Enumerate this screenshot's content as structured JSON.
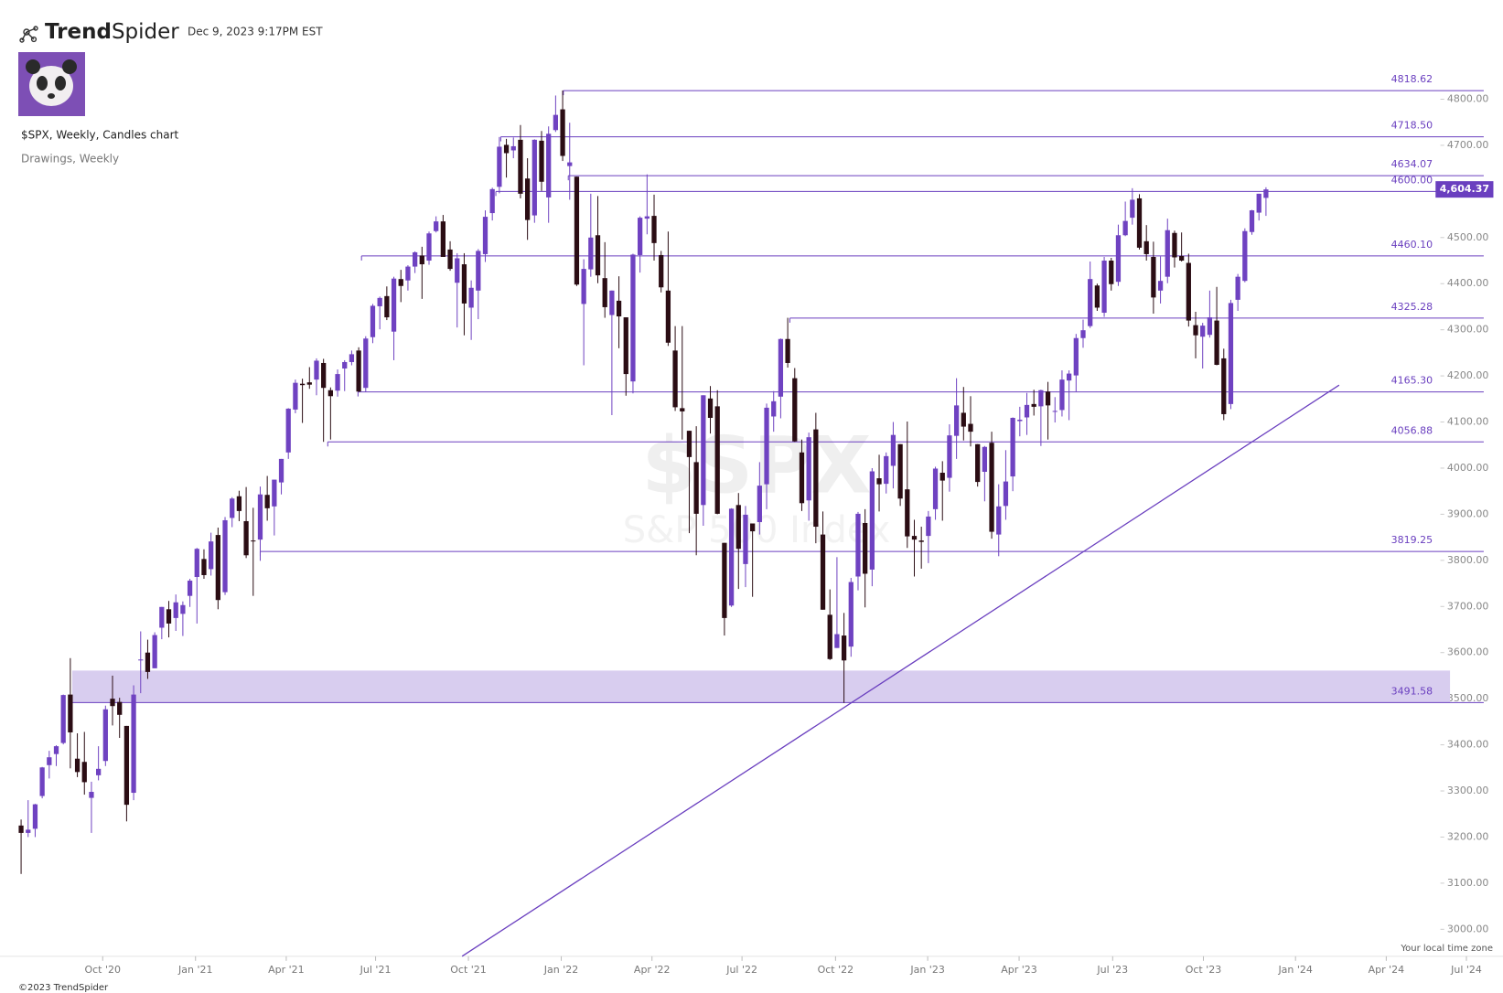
{
  "header": {
    "logo": {
      "bold": "Trend",
      "light": "Spider"
    },
    "timestamp": "Dec 9, 2023 9:17PM EST",
    "symbol_line": "$SPX, Weekly, Candles chart",
    "drawings_line": "Drawings, Weekly"
  },
  "footer": {
    "copyright": "©2023 TrendSpider",
    "timezone": "Your local time zone"
  },
  "chart_data": {
    "type": "candlestick",
    "watermark": {
      "symbol": "$SPX",
      "name": "S&P 500 Index"
    },
    "up_color": "#6f42c1",
    "down_color": "#2b0d14",
    "drawing_color": "#6a3fbf",
    "xlim": [
      -3.0,
      210.7
    ],
    "ylim": [
      2941.5,
      4837.6
    ],
    "xticks": [
      {
        "value": 11.6,
        "label": "Oct '20"
      },
      {
        "value": 24.8,
        "label": "Jan '21"
      },
      {
        "value": 37.7,
        "label": "Apr '21"
      },
      {
        "value": 50.4,
        "label": "Jul '21"
      },
      {
        "value": 63.6,
        "label": "Oct '21"
      },
      {
        "value": 76.8,
        "label": "Jan '22"
      },
      {
        "value": 89.7,
        "label": "Apr '22"
      },
      {
        "value": 102.5,
        "label": "Jul '22"
      },
      {
        "value": 115.8,
        "label": "Oct '22"
      },
      {
        "value": 128.9,
        "label": "Jan '23"
      },
      {
        "value": 141.9,
        "label": "Apr '23"
      },
      {
        "value": 155.2,
        "label": "Jul '23"
      },
      {
        "value": 168.1,
        "label": "Oct '23"
      },
      {
        "value": 181.2,
        "label": "Jan '24"
      },
      {
        "value": 194.1,
        "label": "Apr '24"
      },
      {
        "value": 205.5,
        "label": "Jul '24"
      }
    ],
    "yticks": [
      {
        "value": 3000,
        "label": "3000.00"
      },
      {
        "value": 3100,
        "label": "3100.00"
      },
      {
        "value": 3200,
        "label": "3200.00"
      },
      {
        "value": 3300,
        "label": "3300.00"
      },
      {
        "value": 3400,
        "label": "3400.00"
      },
      {
        "value": 3500,
        "label": "3500.00"
      },
      {
        "value": 3600,
        "label": "3600.00"
      },
      {
        "value": 3700,
        "label": "3700.00"
      },
      {
        "value": 3800,
        "label": "3800.00"
      },
      {
        "value": 3900,
        "label": "3900.00"
      },
      {
        "value": 4000,
        "label": "4000.00"
      },
      {
        "value": 4100,
        "label": "4100.00"
      },
      {
        "value": 4200,
        "label": "4200.00"
      },
      {
        "value": 4300,
        "label": "4300.00"
      },
      {
        "value": 4400,
        "label": "4400.00"
      },
      {
        "value": 4500,
        "label": "4500.00"
      },
      {
        "value": 4600,
        "label": "4600.00"
      },
      {
        "value": 4700,
        "label": "4700.00"
      },
      {
        "value": 4800,
        "label": "4800.00"
      }
    ],
    "levels": [
      {
        "value": 4818.62,
        "label": "4818.62"
      },
      {
        "value": 4718.5,
        "label": "4718.50"
      },
      {
        "value": 4634.07,
        "label": "4634.07"
      },
      {
        "value": 4600,
        "label": "4600.00"
      },
      {
        "value": 4460.1,
        "label": "4460.10"
      },
      {
        "value": 4325.28,
        "label": "4325.28"
      },
      {
        "value": 4165.3,
        "label": "4165.30"
      },
      {
        "value": 4056.88,
        "label": "4056.88"
      },
      {
        "value": 3819.25,
        "label": "3819.25"
      },
      {
        "value": 3491.58,
        "label": "3491.58"
      }
    ],
    "zone": [
      3491.58,
      3561
    ],
    "trendline": [
      [
        62.7,
        2941.5
      ],
      [
        187.4,
        4180
      ]
    ],
    "last": {
      "value": 4604.37,
      "label": "4,604.37"
    },
    "ohlc": [
      [
        3225,
        3238,
        3120,
        3209
      ],
      [
        3209,
        3280,
        3200,
        3216
      ],
      [
        3218,
        3272,
        3200,
        3271
      ],
      [
        3289,
        3352,
        3284,
        3351
      ],
      [
        3356,
        3387,
        3327,
        3373
      ],
      [
        3380,
        3399,
        3354,
        3397
      ],
      [
        3404,
        3509,
        3401,
        3508
      ],
      [
        3509,
        3588,
        3349,
        3427
      ],
      [
        3370,
        3425,
        3330,
        3341
      ],
      [
        3363,
        3428,
        3292,
        3319
      ],
      [
        3285,
        3320,
        3209,
        3298
      ],
      [
        3334,
        3397,
        3323,
        3348
      ],
      [
        3365,
        3485,
        3354,
        3477
      ],
      [
        3500,
        3550,
        3442,
        3484
      ],
      [
        3493,
        3502,
        3415,
        3465
      ],
      [
        3441,
        3441,
        3234,
        3270
      ],
      [
        3296,
        3529,
        3280,
        3509
      ],
      [
        3583,
        3646,
        3512,
        3585
      ],
      [
        3600,
        3628,
        3543,
        3558
      ],
      [
        3566,
        3644,
        3566,
        3638
      ],
      [
        3654,
        3699,
        3629,
        3699
      ],
      [
        3694,
        3712,
        3633,
        3663
      ],
      [
        3675,
        3726,
        3647,
        3709
      ],
      [
        3684,
        3711,
        3636,
        3703
      ],
      [
        3723,
        3760,
        3699,
        3756
      ],
      [
        3764,
        3827,
        3663,
        3825
      ],
      [
        3803,
        3824,
        3760,
        3768
      ],
      [
        3781,
        3860,
        3767,
        3841
      ],
      [
        3855,
        3871,
        3694,
        3714
      ],
      [
        3731,
        3894,
        3725,
        3887
      ],
      [
        3892,
        3937,
        3872,
        3934
      ],
      [
        3939,
        3951,
        3885,
        3907
      ],
      [
        3885,
        3959,
        3805,
        3811
      ],
      [
        3843,
        3914,
        3723,
        3842
      ],
      [
        3845,
        3960,
        3799,
        3943
      ],
      [
        3942,
        3983,
        3886,
        3913
      ],
      [
        3917,
        3975,
        3854,
        3975
      ],
      [
        3969,
        4020,
        3943,
        4020
      ],
      [
        4034,
        4130,
        4020,
        4129
      ],
      [
        4127,
        4192,
        4119,
        4185
      ],
      [
        4183,
        4194,
        4098,
        4180
      ],
      [
        4186,
        4219,
        4172,
        4181
      ],
      [
        4192,
        4238,
        4158,
        4233
      ],
      [
        4228,
        4237,
        4057,
        4174
      ],
      [
        4169,
        4175,
        4062,
        4156
      ],
      [
        4168,
        4214,
        4155,
        4204
      ],
      [
        4216,
        4234,
        4167,
        4230
      ],
      [
        4230,
        4255,
        4223,
        4247
      ],
      [
        4255,
        4262,
        4165,
        4166
      ],
      [
        4174,
        4286,
        4165,
        4281
      ],
      [
        4284,
        4356,
        4271,
        4352
      ],
      [
        4351,
        4372,
        4301,
        4369
      ],
      [
        4373,
        4394,
        4321,
        4327
      ],
      [
        4296,
        4415,
        4234,
        4411
      ],
      [
        4410,
        4430,
        4360,
        4395
      ],
      [
        4407,
        4440,
        4385,
        4437
      ],
      [
        4437,
        4470,
        4423,
        4468
      ],
      [
        4461,
        4480,
        4367,
        4442
      ],
      [
        4450,
        4513,
        4441,
        4509
      ],
      [
        4514,
        4546,
        4511,
        4535
      ],
      [
        4535,
        4549,
        4458,
        4458
      ],
      [
        4474,
        4492,
        4428,
        4432
      ],
      [
        4402,
        4466,
        4305,
        4455
      ],
      [
        4442,
        4466,
        4288,
        4357
      ],
      [
        4348,
        4407,
        4278,
        4391
      ],
      [
        4385,
        4475,
        4323,
        4471
      ],
      [
        4464,
        4559,
        4447,
        4545
      ],
      [
        4553,
        4608,
        4537,
        4605
      ],
      [
        4610,
        4718,
        4596,
        4697
      ],
      [
        4701,
        4714,
        4630,
        4683
      ],
      [
        4689,
        4717,
        4672,
        4698
      ],
      [
        4712,
        4744,
        4585,
        4595
      ],
      [
        4628,
        4672,
        4495,
        4538
      ],
      [
        4548,
        4713,
        4532,
        4712
      ],
      [
        4710,
        4731,
        4601,
        4621
      ],
      [
        4587,
        4741,
        4532,
        4725
      ],
      [
        4733,
        4808,
        4729,
        4766
      ],
      [
        4778,
        4819,
        4666,
        4677
      ],
      [
        4655,
        4749,
        4582,
        4663
      ],
      [
        4632,
        4632,
        4395,
        4398
      ],
      [
        4356,
        4453,
        4223,
        4432
      ],
      [
        4431,
        4595,
        4415,
        4500
      ],
      [
        4505,
        4590,
        4401,
        4418
      ],
      [
        4412,
        4490,
        4326,
        4349
      ],
      [
        4332,
        4385,
        4115,
        4385
      ],
      [
        4363,
        4416,
        4260,
        4329
      ],
      [
        4327,
        4327,
        4157,
        4204
      ],
      [
        4188,
        4465,
        4162,
        4463
      ],
      [
        4462,
        4546,
        4424,
        4543
      ],
      [
        4541,
        4637,
        4507,
        4546
      ],
      [
        4547,
        4593,
        4450,
        4488
      ],
      [
        4462,
        4471,
        4381,
        4392
      ],
      [
        4385,
        4513,
        4265,
        4272
      ],
      [
        4255,
        4308,
        4124,
        4132
      ],
      [
        4130,
        4308,
        4062,
        4123
      ],
      [
        4081,
        4081,
        3859,
        4024
      ],
      [
        4013,
        4091,
        3811,
        3901
      ],
      [
        3920,
        4158,
        3875,
        4158
      ],
      [
        4151,
        4178,
        4075,
        4109
      ],
      [
        4134,
        4169,
        3900,
        3901
      ],
      [
        3838,
        3838,
        3637,
        3675
      ],
      [
        3702,
        3913,
        3699,
        3912
      ],
      [
        3920,
        3946,
        3738,
        3825
      ],
      [
        3792,
        3918,
        3742,
        3899
      ],
      [
        3880,
        3880,
        3721,
        3863
      ],
      [
        3883,
        4013,
        3856,
        3962
      ],
      [
        3965,
        4140,
        3911,
        4131
      ],
      [
        4112,
        4167,
        4079,
        4145
      ],
      [
        4155,
        4281,
        4108,
        4280
      ],
      [
        4280,
        4326,
        4218,
        4228
      ],
      [
        4195,
        4217,
        4057,
        4058
      ],
      [
        4034,
        4062,
        3907,
        3924
      ],
      [
        3930,
        4077,
        3886,
        4067
      ],
      [
        4084,
        4120,
        3837,
        3873
      ],
      [
        3856,
        3906,
        3693,
        3693
      ],
      [
        3682,
        3737,
        3584,
        3586
      ],
      [
        3610,
        3807,
        3610,
        3640
      ],
      [
        3637,
        3686,
        3491,
        3583
      ],
      [
        3613,
        3762,
        3591,
        3753
      ],
      [
        3765,
        3905,
        3735,
        3901
      ],
      [
        3881,
        3911,
        3698,
        3771
      ],
      [
        3780,
        4000,
        3744,
        3993
      ],
      [
        3978,
        4029,
        3906,
        3965
      ],
      [
        3966,
        4034,
        3945,
        4026
      ],
      [
        4005,
        4100,
        3956,
        4072
      ],
      [
        4052,
        4052,
        3918,
        3934
      ],
      [
        3954,
        4101,
        3827,
        3852
      ],
      [
        3853,
        3888,
        3765,
        3845
      ],
      [
        3843,
        3873,
        3782,
        3840
      ],
      [
        3853,
        3907,
        3794,
        3895
      ],
      [
        3911,
        4003,
        3888,
        3999
      ],
      [
        3990,
        4015,
        3886,
        3973
      ],
      [
        3979,
        4095,
        3949,
        4071
      ],
      [
        4070,
        4195,
        4020,
        4136
      ],
      [
        4120,
        4176,
        4060,
        4090
      ],
      [
        4096,
        4156,
        4047,
        4079
      ],
      [
        4052,
        4052,
        3960,
        3970
      ],
      [
        3992,
        4048,
        3928,
        4046
      ],
      [
        4055,
        4079,
        3847,
        3862
      ],
      [
        3856,
        3965,
        3809,
        3917
      ],
      [
        3918,
        4039,
        3888,
        3971
      ],
      [
        3982,
        4110,
        3950,
        4109
      ],
      [
        4102,
        4133,
        4069,
        4105
      ],
      [
        4110,
        4163,
        4072,
        4137
      ],
      [
        4139,
        4170,
        4114,
        4133
      ],
      [
        4134,
        4170,
        4048,
        4169
      ],
      [
        4166,
        4187,
        4062,
        4136
      ],
      [
        4123,
        4154,
        4099,
        4124
      ],
      [
        4126,
        4212,
        4112,
        4192
      ],
      [
        4190,
        4212,
        4104,
        4205
      ],
      [
        4201,
        4291,
        4166,
        4282
      ],
      [
        4282,
        4322,
        4261,
        4299
      ],
      [
        4308,
        4448,
        4304,
        4410
      ],
      [
        4396,
        4400,
        4341,
        4348
      ],
      [
        4337,
        4458,
        4328,
        4450
      ],
      [
        4450,
        4456,
        4385,
        4399
      ],
      [
        4404,
        4528,
        4395,
        4505
      ],
      [
        4505,
        4578,
        4503,
        4536
      ],
      [
        4543,
        4607,
        4528,
        4582
      ],
      [
        4585,
        4594,
        4474,
        4478
      ],
      [
        4492,
        4527,
        4450,
        4464
      ],
      [
        4458,
        4491,
        4335,
        4370
      ],
      [
        4385,
        4459,
        4357,
        4406
      ],
      [
        4415,
        4541,
        4401,
        4516
      ],
      [
        4510,
        4515,
        4435,
        4457
      ],
      [
        4460,
        4511,
        4448,
        4450
      ],
      [
        4445,
        4465,
        4307,
        4320
      ],
      [
        4310,
        4339,
        4238,
        4288
      ],
      [
        4285,
        4315,
        4216,
        4309
      ],
      [
        4289,
        4385,
        4283,
        4327
      ],
      [
        4320,
        4393,
        4223,
        4224
      ],
      [
        4238,
        4259,
        4104,
        4117
      ],
      [
        4139,
        4365,
        4128,
        4358
      ],
      [
        4365,
        4421,
        4341,
        4415
      ],
      [
        4406,
        4520,
        4403,
        4514
      ],
      [
        4512,
        4560,
        4506,
        4559
      ],
      [
        4554,
        4595,
        4537,
        4595
      ],
      [
        4586,
        4609,
        4547,
        4604.37
      ]
    ]
  }
}
